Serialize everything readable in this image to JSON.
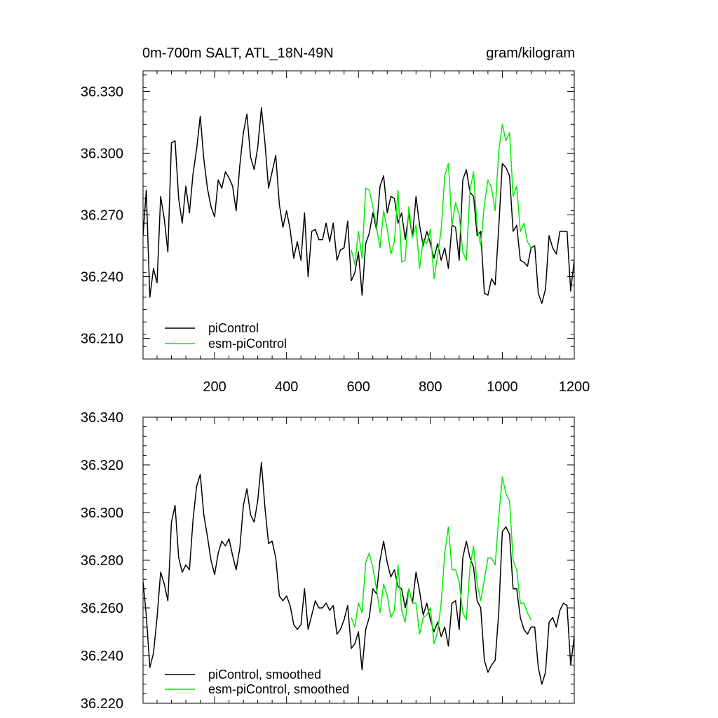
{
  "figure": {
    "title_left": "0m-700m SALT, ATL_18N-49N",
    "title_right": "gram/kilogram"
  },
  "colors": {
    "picontrol": "#000000",
    "esm_picontrol": "#00ee00"
  },
  "chart_data": [
    {
      "type": "line",
      "title": "0m-700m SALT, ATL_18N-49N",
      "units": "gram/kilogram",
      "xlabel": "",
      "ylabel": "",
      "xlim": [
        1,
        1200
      ],
      "ylim": [
        36.2,
        36.34
      ],
      "x_ticks": [
        200,
        400,
        600,
        800,
        1000,
        1200
      ],
      "x_tick_labels": [
        "200",
        "400",
        "600",
        "800",
        "1000",
        "1200"
      ],
      "y_ticks": [
        36.21,
        36.24,
        36.27,
        36.3,
        36.33
      ],
      "y_tick_labels": [
        "36.210",
        "36.240",
        "36.270",
        "36.300",
        "36.330"
      ],
      "legend": {
        "placement": "bottom-left",
        "entries": [
          "piControl",
          "esm-piControl"
        ]
      },
      "series": [
        {
          "name": "piControl",
          "color": "#000000",
          "x": [
            1,
            10,
            20,
            30,
            40,
            50,
            60,
            70,
            80,
            90,
            100,
            110,
            120,
            130,
            140,
            150,
            160,
            170,
            180,
            190,
            200,
            210,
            220,
            230,
            240,
            250,
            260,
            270,
            280,
            290,
            300,
            310,
            320,
            330,
            340,
            350,
            360,
            370,
            380,
            390,
            400,
            410,
            420,
            430,
            440,
            450,
            460,
            470,
            480,
            490,
            500,
            510,
            520,
            530,
            540,
            550,
            560,
            570,
            580,
            590,
            600,
            610,
            620,
            630,
            640,
            650,
            660,
            670,
            680,
            690,
            700,
            710,
            720,
            730,
            740,
            750,
            760,
            770,
            780,
            790,
            800,
            810,
            820,
            830,
            840,
            850,
            860,
            870,
            880,
            890,
            900,
            910,
            920,
            930,
            940,
            950,
            960,
            970,
            980,
            990,
            1000,
            1010,
            1020,
            1030,
            1040,
            1050,
            1060,
            1070,
            1080,
            1090,
            1100,
            1110,
            1120,
            1130,
            1140,
            1150,
            1160,
            1170,
            1180,
            1190,
            1200
          ],
          "values": [
            36.26,
            36.282,
            36.23,
            36.244,
            36.237,
            36.279,
            36.268,
            36.252,
            36.305,
            36.306,
            36.278,
            36.266,
            36.284,
            36.271,
            36.29,
            36.302,
            36.318,
            36.297,
            36.283,
            36.274,
            36.269,
            36.287,
            36.283,
            36.291,
            36.288,
            36.284,
            36.272,
            36.294,
            36.31,
            36.319,
            36.298,
            36.292,
            36.303,
            36.322,
            36.305,
            36.283,
            36.291,
            36.299,
            36.275,
            36.264,
            36.272,
            36.263,
            36.249,
            36.257,
            36.248,
            36.271,
            36.24,
            36.262,
            36.263,
            36.258,
            36.258,
            36.266,
            36.257,
            36.266,
            36.248,
            36.253,
            36.254,
            36.267,
            36.238,
            36.242,
            36.252,
            36.231,
            36.256,
            36.261,
            36.271,
            36.263,
            36.284,
            36.289,
            36.271,
            36.279,
            36.278,
            36.266,
            36.271,
            36.258,
            36.271,
            36.259,
            36.279,
            36.265,
            36.255,
            36.262,
            36.256,
            36.249,
            36.256,
            36.248,
            36.254,
            36.244,
            36.265,
            36.264,
            36.248,
            36.287,
            36.292,
            36.281,
            36.279,
            36.26,
            36.262,
            36.232,
            36.231,
            36.239,
            36.236,
            36.264,
            36.295,
            36.293,
            36.289,
            36.262,
            36.265,
            36.248,
            36.247,
            36.245,
            36.254,
            36.255,
            36.232,
            36.227,
            36.234,
            36.26,
            36.254,
            36.251,
            36.262,
            36.262,
            36.262,
            36.233,
            36.248
          ]
        },
        {
          "name": "esm-piControl",
          "color": "#00ee00",
          "x": [
            580,
            590,
            600,
            610,
            620,
            630,
            640,
            650,
            660,
            670,
            680,
            690,
            700,
            710,
            720,
            730,
            740,
            750,
            760,
            770,
            780,
            790,
            800,
            810,
            820,
            830,
            840,
            850,
            860,
            870,
            880,
            890,
            900,
            910,
            920,
            930,
            940,
            950,
            960,
            970,
            980,
            990,
            1000,
            1010,
            1020,
            1030,
            1040,
            1050,
            1060,
            1070,
            1080
          ],
          "values": [
            36.253,
            36.246,
            36.262,
            36.249,
            36.283,
            36.282,
            36.274,
            36.264,
            36.254,
            36.272,
            36.263,
            36.251,
            36.257,
            36.282,
            36.247,
            36.248,
            36.274,
            36.259,
            36.265,
            36.244,
            36.258,
            36.256,
            36.263,
            36.239,
            36.25,
            36.263,
            36.289,
            36.295,
            36.265,
            36.276,
            36.27,
            36.252,
            36.248,
            36.282,
            36.291,
            36.264,
            36.255,
            36.275,
            36.287,
            36.283,
            36.272,
            36.301,
            36.314,
            36.306,
            36.31,
            36.279,
            36.284,
            36.262,
            36.266,
            36.257,
            36.254
          ]
        }
      ]
    },
    {
      "type": "line",
      "title": "",
      "xlabel": "",
      "ylabel": "",
      "xlim": [
        1,
        1200
      ],
      "ylim": [
        36.22,
        36.34
      ],
      "x_ticks": [
        200,
        400,
        600,
        800,
        1000,
        1200
      ],
      "x_tick_labels": [],
      "y_ticks": [
        36.22,
        36.24,
        36.26,
        36.28,
        36.3,
        36.32,
        36.34
      ],
      "y_tick_labels": [
        "36.220",
        "36.240",
        "36.260",
        "36.280",
        "36.300",
        "36.320",
        "36.340"
      ],
      "legend": {
        "placement": "bottom-left",
        "entries": [
          "piControl, smoothed",
          "esm-piControl, smoothed"
        ]
      },
      "series": [
        {
          "name": "piControl, smoothed",
          "color": "#000000",
          "x": [
            1,
            10,
            20,
            30,
            40,
            50,
            60,
            70,
            80,
            90,
            100,
            110,
            120,
            130,
            140,
            150,
            160,
            170,
            180,
            190,
            200,
            210,
            220,
            230,
            240,
            250,
            260,
            270,
            280,
            290,
            300,
            310,
            320,
            330,
            340,
            350,
            360,
            370,
            380,
            390,
            400,
            410,
            420,
            430,
            440,
            450,
            460,
            470,
            480,
            490,
            500,
            510,
            520,
            530,
            540,
            550,
            560,
            570,
            580,
            590,
            600,
            610,
            620,
            630,
            640,
            650,
            660,
            670,
            680,
            690,
            700,
            710,
            720,
            730,
            740,
            750,
            760,
            770,
            780,
            790,
            800,
            810,
            820,
            830,
            840,
            850,
            860,
            870,
            880,
            890,
            900,
            910,
            920,
            930,
            940,
            950,
            960,
            970,
            980,
            990,
            1000,
            1010,
            1020,
            1030,
            1040,
            1050,
            1060,
            1070,
            1080,
            1090,
            1100,
            1110,
            1120,
            1130,
            1140,
            1150,
            1160,
            1170,
            1180,
            1190,
            1200
          ],
          "values": [
            36.271,
            36.257,
            36.235,
            36.241,
            36.256,
            36.275,
            36.27,
            36.263,
            36.296,
            36.303,
            36.281,
            36.275,
            36.278,
            36.276,
            36.297,
            36.311,
            36.316,
            36.299,
            36.29,
            36.28,
            36.274,
            36.283,
            36.288,
            36.286,
            36.289,
            36.282,
            36.276,
            36.285,
            36.303,
            36.31,
            36.299,
            36.296,
            36.305,
            36.321,
            36.302,
            36.287,
            36.288,
            36.281,
            36.265,
            36.263,
            36.265,
            36.261,
            36.253,
            36.251,
            36.253,
            36.268,
            36.251,
            36.257,
            36.263,
            36.26,
            36.26,
            36.262,
            36.259,
            36.261,
            36.249,
            36.251,
            36.255,
            36.261,
            36.243,
            36.245,
            36.25,
            36.234,
            36.251,
            36.256,
            36.268,
            36.266,
            36.28,
            36.288,
            36.279,
            36.273,
            36.276,
            36.269,
            36.268,
            36.26,
            36.268,
            36.262,
            36.275,
            36.267,
            36.257,
            36.262,
            36.255,
            36.25,
            36.254,
            36.248,
            36.252,
            36.244,
            36.262,
            36.263,
            36.251,
            36.281,
            36.288,
            36.281,
            36.277,
            36.263,
            36.26,
            36.238,
            36.233,
            36.236,
            36.238,
            36.258,
            36.292,
            36.294,
            36.291,
            36.268,
            36.268,
            36.256,
            36.251,
            36.249,
            36.252,
            36.252,
            36.235,
            36.228,
            36.233,
            36.254,
            36.256,
            36.252,
            36.259,
            36.262,
            36.261,
            36.236,
            36.248
          ]
        },
        {
          "name": "esm-piControl, smoothed",
          "color": "#00ee00",
          "x": [
            580,
            590,
            600,
            610,
            620,
            630,
            640,
            650,
            660,
            670,
            680,
            690,
            700,
            710,
            720,
            730,
            740,
            750,
            760,
            770,
            780,
            790,
            800,
            810,
            820,
            830,
            840,
            850,
            860,
            870,
            880,
            890,
            900,
            910,
            920,
            930,
            940,
            950,
            960,
            970,
            980,
            990,
            1000,
            1010,
            1020,
            1030,
            1040,
            1050,
            1060,
            1070,
            1080
          ],
          "values": [
            36.256,
            36.252,
            36.262,
            36.258,
            36.279,
            36.283,
            36.277,
            36.268,
            36.258,
            36.27,
            36.265,
            36.256,
            36.259,
            36.278,
            36.259,
            36.254,
            36.268,
            36.262,
            36.262,
            36.249,
            36.256,
            36.257,
            36.26,
            36.245,
            36.25,
            36.262,
            36.283,
            36.294,
            36.276,
            36.276,
            36.271,
            36.258,
            36.255,
            36.277,
            36.286,
            36.27,
            36.263,
            36.272,
            36.281,
            36.281,
            36.278,
            36.298,
            36.315,
            36.308,
            36.305,
            36.28,
            36.276,
            36.262,
            36.262,
            36.258,
            36.255
          ]
        }
      ]
    }
  ]
}
